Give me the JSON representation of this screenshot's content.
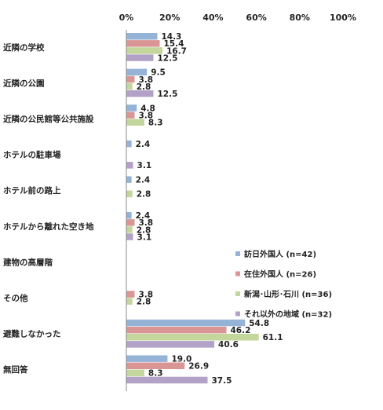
{
  "chart_data": {
    "type": "bar",
    "orientation": "horizontal",
    "xlim": [
      0,
      100
    ],
    "xticks": [
      "0%",
      "20%",
      "40%",
      "60%",
      "80%",
      "100%"
    ],
    "grid": false,
    "legend_position": "right",
    "categories": [
      "近隣の学校",
      "近隣の公園",
      "近隣の公民館等公共施設",
      "ホテルの駐車場",
      "ホテル前の路上",
      "ホテルから離れた空き地",
      "建物の高層階",
      "その他",
      "避難しなかった",
      "無回答"
    ],
    "series": [
      {
        "name": "訪日外国人 (n=42)",
        "color": "#95b3d7",
        "values": [
          14.3,
          9.5,
          4.8,
          2.4,
          2.4,
          2.4,
          0,
          0,
          54.8,
          19.0
        ],
        "labels": [
          "14.3",
          "9.5",
          "4.8",
          "2.4",
          "2.4",
          "2.4",
          "",
          "",
          "54.8",
          "19.0"
        ]
      },
      {
        "name": "在住外国人 (n=26)",
        "color": "#d99694",
        "values": [
          15.4,
          3.8,
          3.8,
          0,
          0,
          3.8,
          0,
          3.8,
          46.2,
          26.9
        ],
        "labels": [
          "15.4",
          "3.8",
          "3.8",
          "",
          "",
          "3.8",
          "",
          "3.8",
          "46.2",
          "26.9"
        ]
      },
      {
        "name": "新潟･山形･石川 (n=36)",
        "color": "#c3d69b",
        "values": [
          16.7,
          2.8,
          8.3,
          0,
          2.8,
          2.8,
          0,
          2.8,
          61.1,
          8.3
        ],
        "labels": [
          "16.7",
          "2.8",
          "8.3",
          "",
          "2.8",
          "2.8",
          "",
          "2.8",
          "61.1",
          "8.3"
        ]
      },
      {
        "name": "それ以外の地域 (n=32)",
        "color": "#b3a2c7",
        "values": [
          12.5,
          12.5,
          0,
          3.1,
          0,
          3.1,
          0,
          0,
          40.6,
          37.5
        ],
        "labels": [
          "12.5",
          "12.5",
          "",
          "3.1",
          "",
          "3.1",
          "",
          "",
          "40.6",
          "37.5"
        ]
      }
    ]
  }
}
